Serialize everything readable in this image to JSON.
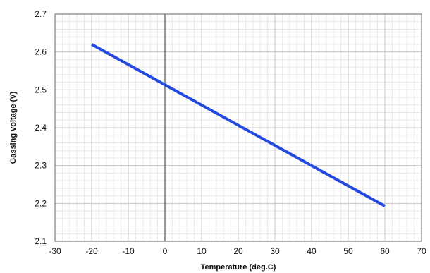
{
  "chart_data": {
    "type": "line",
    "xlabel": "Temperature (deg.C)",
    "ylabel": "Gassing voltage (V)",
    "xlim": [
      -30,
      70
    ],
    "ylim": [
      2.1,
      2.7
    ],
    "x_ticks": [
      -30,
      -20,
      -10,
      0,
      10,
      20,
      30,
      40,
      50,
      60,
      70
    ],
    "y_ticks": [
      2.1,
      2.2,
      2.3,
      2.4,
      2.5,
      2.6,
      2.7
    ],
    "grid": true,
    "series": [
      {
        "x": [
          -20,
          60
        ],
        "y": [
          2.62,
          2.193
        ],
        "color": "#2449e0"
      }
    ]
  }
}
